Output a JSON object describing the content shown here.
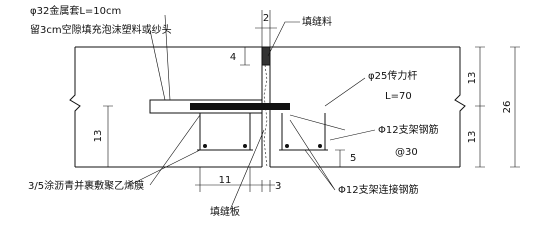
{
  "labels": {
    "sleeve": "φ32金属套L=10cm",
    "gap_fill": "留3cm空隙填充泡沫塑料或纱头",
    "sealant": "填缝料",
    "dowel": "φ25传力杆",
    "dowel_length": "L=70",
    "support_bar": "Φ12支架钢筋",
    "support_spacing": "@30",
    "coating": "3/5涂沥青并裹敷聚乙烯膜",
    "connect_bar": "Φ12支架连接钢筋",
    "joint_board": "填缝板"
  },
  "dimensions": {
    "joint_width": "2",
    "sealant_depth": "4",
    "left_height": "13",
    "right_upper": "13",
    "total": "26",
    "right_lower": "13",
    "cover": "5",
    "bottom_left": "11",
    "bottom_joint": "3"
  }
}
